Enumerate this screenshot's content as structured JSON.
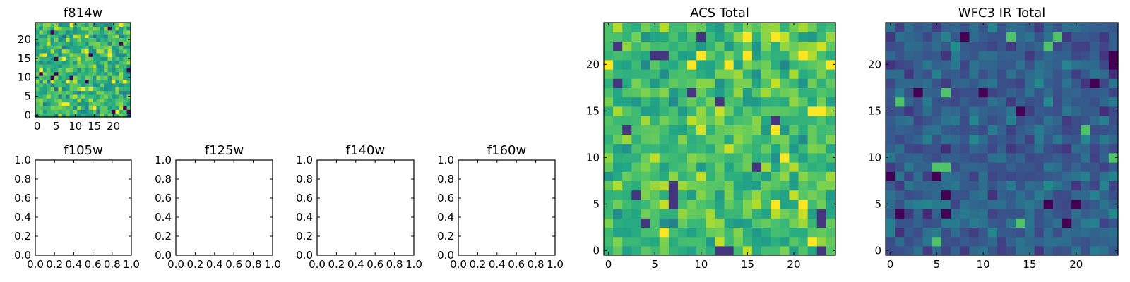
{
  "chart_data": [
    {
      "type": "heatmap",
      "title": "f814w",
      "grid_size": 25,
      "xlim": [
        -0.5,
        24.5
      ],
      "ylim": [
        -0.5,
        24.5
      ],
      "xticks": [
        0,
        5,
        10,
        15,
        20
      ],
      "yticks": [
        0,
        5,
        10,
        15,
        20
      ],
      "colormap": "viridis",
      "seed": 11,
      "mean": 0.66,
      "spread": 0.22
    },
    {
      "type": "empty",
      "title": "f105w",
      "xlim": [
        0.0,
        1.0
      ],
      "ylim": [
        0.0,
        1.0
      ],
      "xticks": [
        "0.0",
        "0.2",
        "0.4",
        "0.6",
        "0.8",
        "1.0"
      ],
      "yticks": [
        "0.0",
        "0.2",
        "0.4",
        "0.6",
        "0.8",
        "1.0"
      ]
    },
    {
      "type": "empty",
      "title": "f125w",
      "xlim": [
        0.0,
        1.0
      ],
      "ylim": [
        0.0,
        1.0
      ],
      "xticks": [
        "0.0",
        "0.2",
        "0.4",
        "0.6",
        "0.8",
        "1.0"
      ],
      "yticks": [
        "0.0",
        "0.2",
        "0.4",
        "0.6",
        "0.8",
        "1.0"
      ]
    },
    {
      "type": "empty",
      "title": "f140w",
      "xlim": [
        0.0,
        1.0
      ],
      "ylim": [
        0.0,
        1.0
      ],
      "xticks": [
        "0.0",
        "0.2",
        "0.4",
        "0.6",
        "0.8",
        "1.0"
      ],
      "yticks": [
        "0.0",
        "0.2",
        "0.4",
        "0.6",
        "0.8",
        "1.0"
      ]
    },
    {
      "type": "empty",
      "title": "f160w",
      "xlim": [
        0.0,
        1.0
      ],
      "ylim": [
        0.0,
        1.0
      ],
      "xticks": [
        "0.0",
        "0.2",
        "0.4",
        "0.6",
        "0.8",
        "1.0"
      ],
      "yticks": [
        "0.0",
        "0.2",
        "0.4",
        "0.6",
        "0.8",
        "1.0"
      ]
    },
    {
      "type": "heatmap",
      "title": "ACS Total",
      "grid_size": 25,
      "xlim": [
        -0.5,
        24.5
      ],
      "ylim": [
        -0.5,
        24.5
      ],
      "xticks": [
        0,
        5,
        10,
        15,
        20
      ],
      "yticks": [
        0,
        5,
        10,
        15,
        20
      ],
      "colormap": "viridis",
      "seed": 23,
      "mean": 0.7,
      "spread": 0.18
    },
    {
      "type": "heatmap",
      "title": "WFC3 IR Total",
      "grid_size": 25,
      "xlim": [
        -0.5,
        24.5
      ],
      "ylim": [
        -0.5,
        24.5
      ],
      "xticks": [
        0,
        5,
        10,
        15,
        20
      ],
      "yticks": [
        0,
        5,
        10,
        15,
        20
      ],
      "colormap": "viridis",
      "seed": 37,
      "mean": 0.3,
      "spread": 0.14
    }
  ]
}
